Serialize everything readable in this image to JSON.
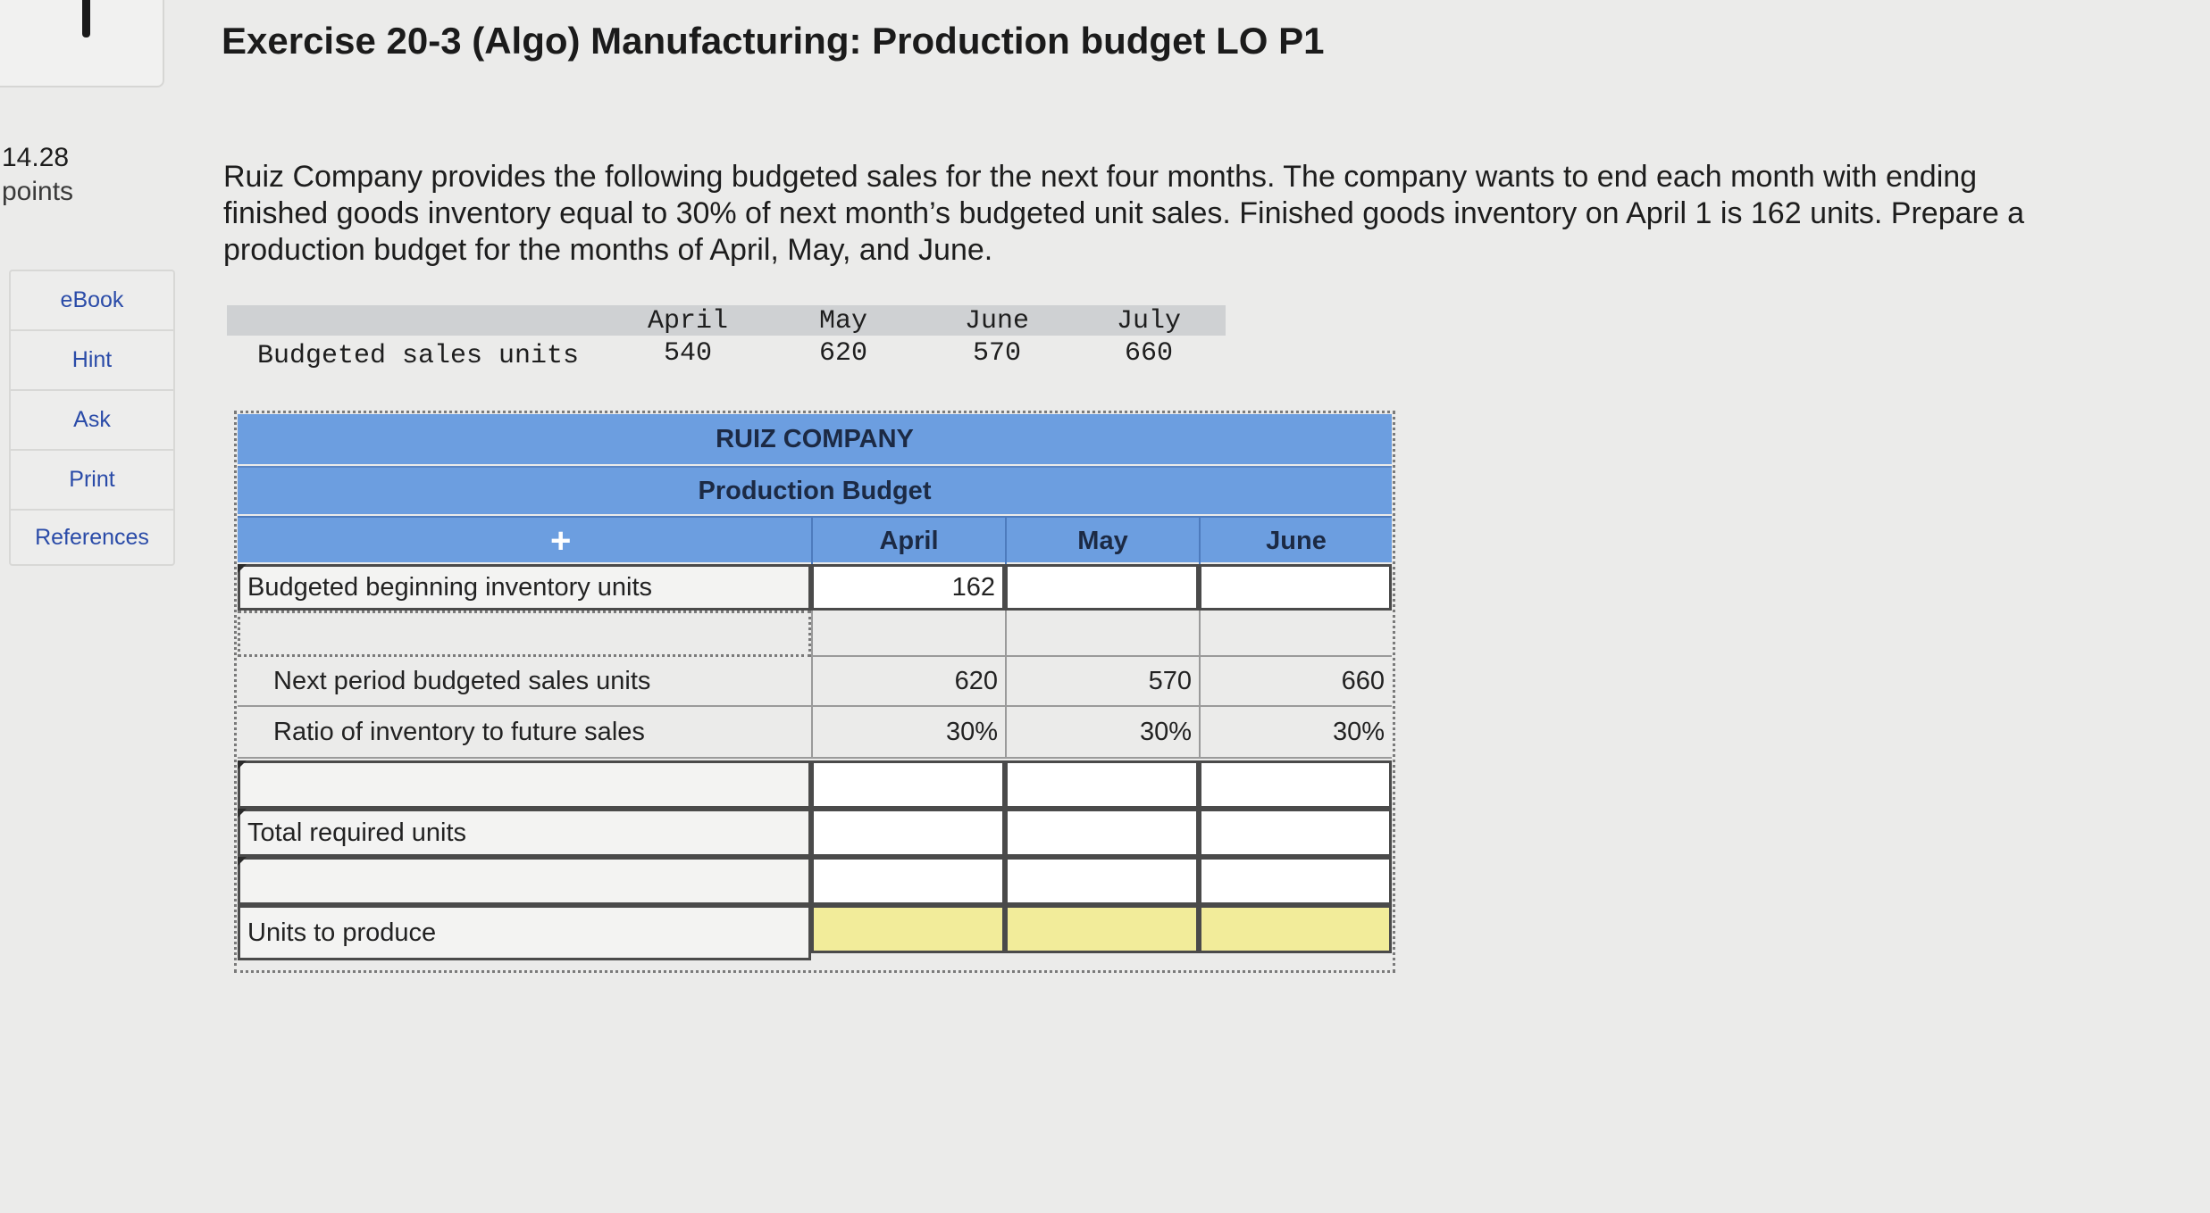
{
  "header": {
    "title": "Exercise 20-3 (Algo) Manufacturing: Production budget LO P1"
  },
  "score": {
    "points_value": "14.28",
    "points_label": "points"
  },
  "sidebar": {
    "items": [
      {
        "label": "eBook"
      },
      {
        "label": "Hint"
      },
      {
        "label": "Ask"
      },
      {
        "label": "Print"
      },
      {
        "label": "References"
      }
    ]
  },
  "prompt": {
    "text": "Ruiz Company provides the following budgeted sales for the next four months. The company wants to end each month with ending finished goods inventory equal to 30% of next month’s budgeted unit sales. Finished goods inventory on April 1 is 162 units. Prepare a production budget for the months of April, May, and June."
  },
  "given": {
    "row_label": "Budgeted sales units",
    "months": [
      "April",
      "May",
      "June",
      "July"
    ],
    "values": [
      "540",
      "620",
      "570",
      "660"
    ]
  },
  "budget": {
    "company": "RUIZ COMPANY",
    "subtitle": "Production Budget",
    "add_symbol": "+",
    "months": [
      "April",
      "May",
      "June"
    ],
    "rows": {
      "beginning_label": "Budgeted beginning inventory units",
      "beginning_april": "162",
      "next_sales_label": "Next period budgeted sales units",
      "next_sales": [
        "620",
        "570",
        "660"
      ],
      "ratio_label": "Ratio of inventory to future sales",
      "ratio": [
        "30%",
        "30%",
        "30%"
      ],
      "total_label": "Total required units",
      "produce_label": "Units to produce"
    }
  },
  "colors": {
    "header_band": "#6c9ee0",
    "answer_highlight": "#f2ec9a",
    "link": "#2a4ba8"
  }
}
